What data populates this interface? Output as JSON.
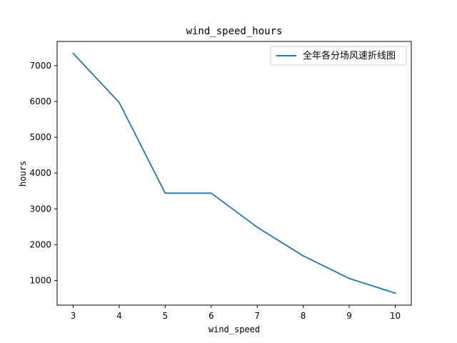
{
  "chart_data": {
    "type": "line",
    "title": "wind_speed_hours",
    "xlabel": "wind_speed",
    "ylabel": "hours",
    "x": [
      3,
      4,
      5,
      6,
      7,
      8,
      9,
      10
    ],
    "series": [
      {
        "name": "全年各分场风速折线图",
        "color": "#1f77b4",
        "values": [
          7340,
          5970,
          3440,
          3440,
          2490,
          1690,
          1060,
          650
        ]
      }
    ],
    "xticks": [
      "3",
      "4",
      "5",
      "6",
      "7",
      "8",
      "9",
      "10"
    ],
    "yticks": [
      1000,
      2000,
      3000,
      4000,
      5000,
      6000,
      7000
    ],
    "xlim": [
      2.65,
      10.35
    ],
    "ylim": [
      315,
      7675
    ],
    "grid": false,
    "legend_position": "top-right"
  }
}
